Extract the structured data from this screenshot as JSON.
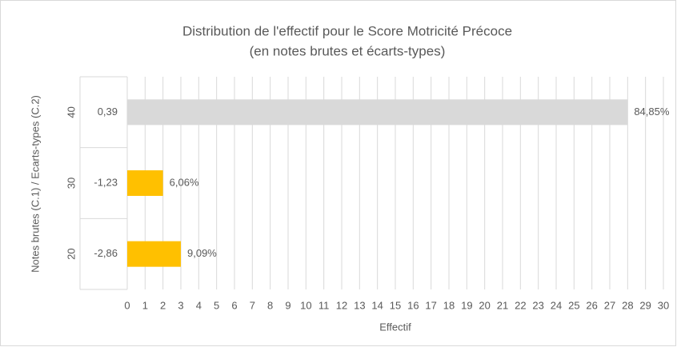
{
  "chart_data": {
    "type": "bar",
    "orientation": "horizontal",
    "title": [
      "Distribution de l'effectif pour le Score Motricité Précoce",
      "(en notes brutes et écarts-types)"
    ],
    "x_label": "Effectif",
    "y_label": "Notes brutes (C.1) / Ecarts-types (C.2)",
    "categories": [
      "40",
      "30",
      "20"
    ],
    "subcategories": [
      "0,39",
      "-1,23",
      "-2,86"
    ],
    "values": [
      28,
      2,
      3
    ],
    "data_labels": [
      "84,85%",
      "6,06%",
      "9,09%"
    ],
    "colors": [
      "#d9d9d9",
      "#ffc000",
      "#ffc000"
    ],
    "xlim": [
      0,
      30
    ],
    "xticks": [
      0,
      1,
      2,
      3,
      4,
      5,
      6,
      7,
      8,
      9,
      10,
      11,
      12,
      13,
      14,
      15,
      16,
      17,
      18,
      19,
      20,
      21,
      22,
      23,
      24,
      25,
      26,
      27,
      28,
      29,
      30
    ],
    "grid": true
  }
}
